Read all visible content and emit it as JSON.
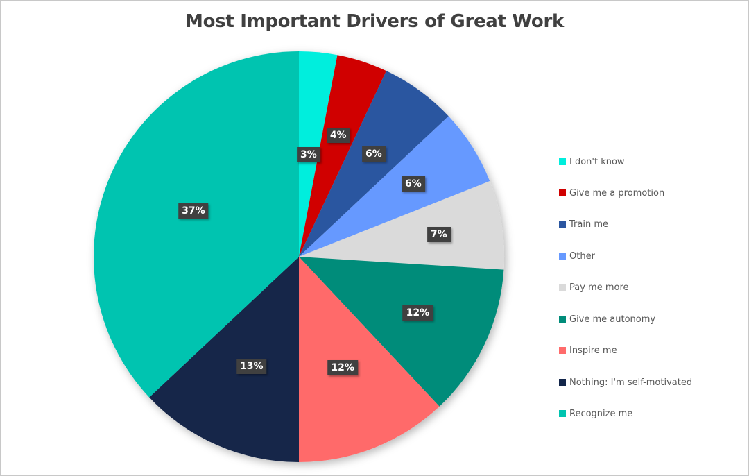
{
  "chart_data": {
    "type": "pie",
    "title": "Most Important Drivers of Great Work",
    "categories": [
      "I don't know",
      "Give me a promotion",
      "Train me",
      "Other",
      "Pay me more",
      "Give me autonomy",
      "Inspire me",
      "Nothing: I'm self-motivated",
      "Recognize me"
    ],
    "values": [
      3,
      4,
      6,
      6,
      7,
      12,
      12,
      13,
      37
    ],
    "labels": [
      "3%",
      "4%",
      "6%",
      "6%",
      "7%",
      "12%",
      "12%",
      "13%",
      "37%"
    ],
    "colors": [
      "#00EEDD",
      "#D00000",
      "#2B56A0",
      "#6699FF",
      "#DADADA",
      "#008C7A",
      "#FF6B6B",
      "#13264A",
      "#00C4B0"
    ],
    "start_angle": "12 o'clock",
    "direction": "clockwise",
    "legend_position": "right"
  },
  "legend": {
    "items": [
      {
        "label": "I don't know",
        "color": "#00EEDD"
      },
      {
        "label": "Give me a promotion",
        "color": "#D00000"
      },
      {
        "label": "Train me",
        "color": "#2B56A0"
      },
      {
        "label": "Other",
        "color": "#6699FF"
      },
      {
        "label": "Pay me more",
        "color": "#DADADA"
      },
      {
        "label": "Give me autonomy",
        "color": "#008C7A"
      },
      {
        "label": "Inspire me",
        "color": "#FF6B6B"
      },
      {
        "label": "Nothing: I'm self-motivated",
        "color": "#13264A"
      },
      {
        "label": "Recognize me",
        "color": "#00C4B0"
      }
    ]
  }
}
